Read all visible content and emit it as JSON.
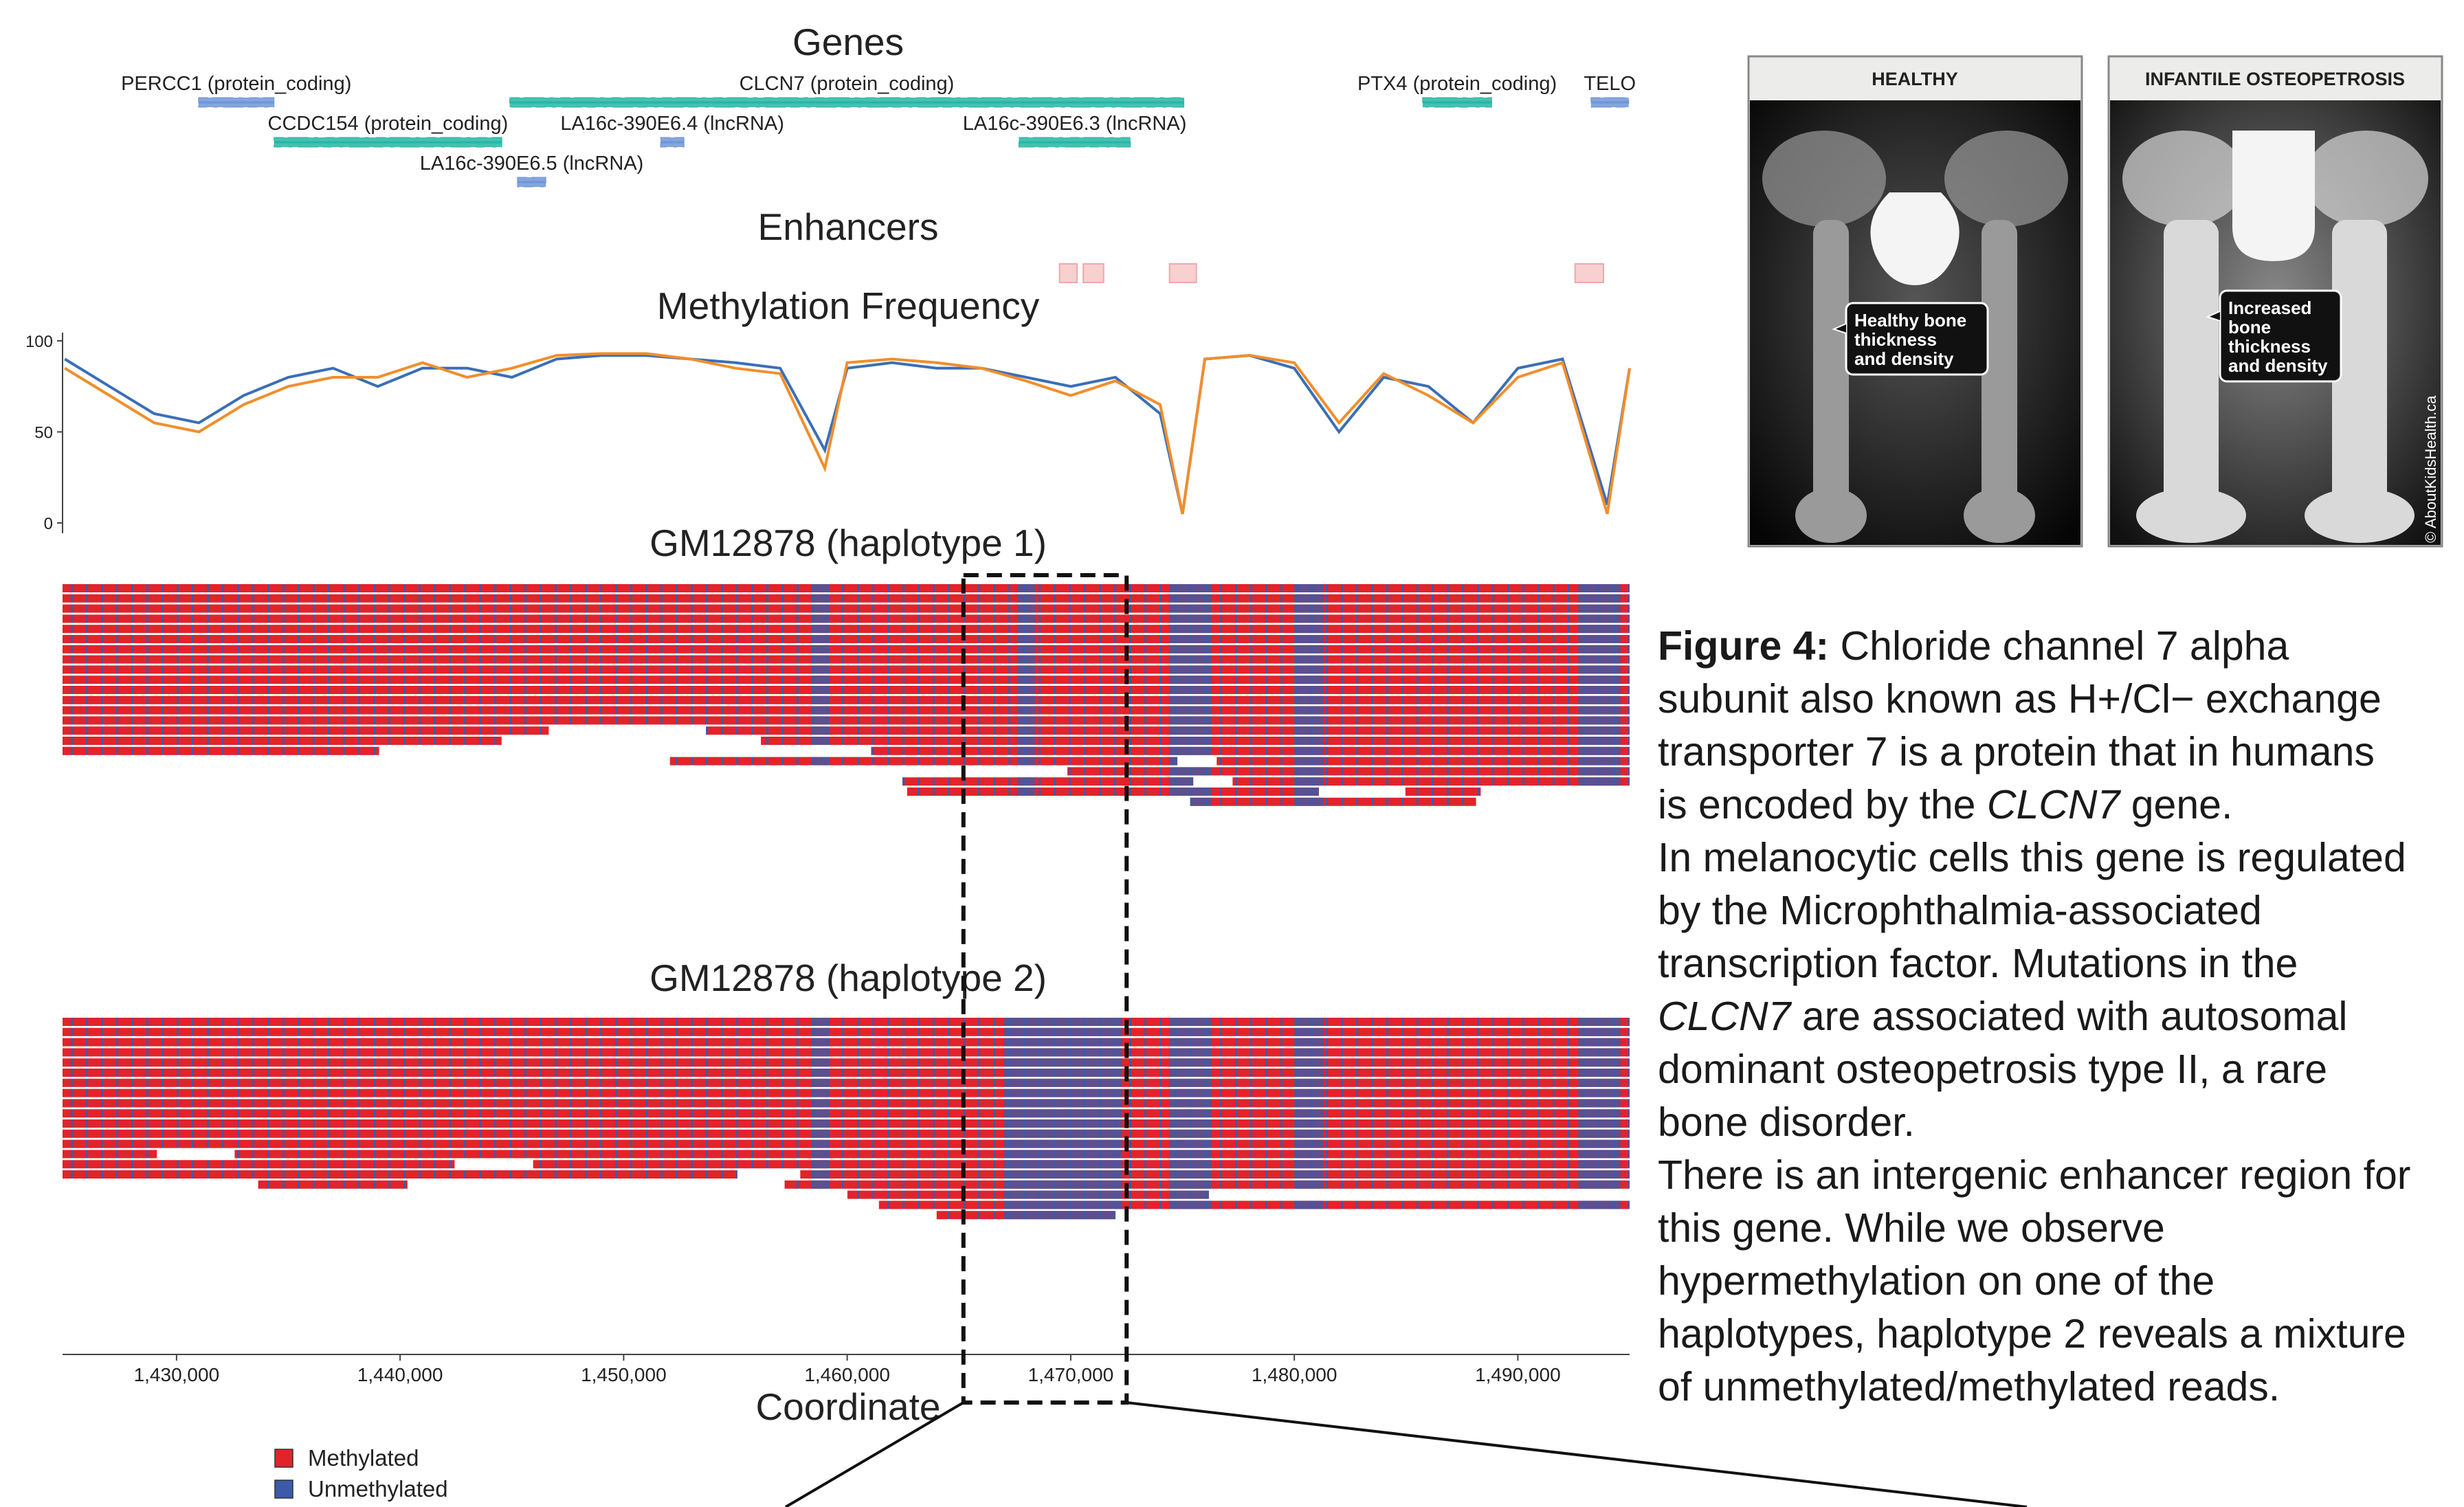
{
  "chart_data": {
    "type": "genome-tracks",
    "xlim": [
      1424900,
      1495000
    ],
    "xticks": [
      {
        "value": 1430000,
        "label": "1,430,000"
      },
      {
        "value": 1440000,
        "label": "1,440,000"
      },
      {
        "value": 1450000,
        "label": "1,450,000"
      },
      {
        "value": 1460000,
        "label": "1,460,000"
      },
      {
        "value": 1470000,
        "label": "1,470,000"
      },
      {
        "value": 1480000,
        "label": "1,480,000"
      },
      {
        "value": 1490000,
        "label": "1,490,000"
      }
    ],
    "xlabel": "Coordinate",
    "highlight": [
      1465200,
      1472500
    ],
    "legend": [
      {
        "name": "Methylated",
        "color": "#e3232a"
      },
      {
        "name": "Unmethylated",
        "color": "#3c5aa8"
      }
    ],
    "tracks": [
      {
        "type": "genes",
        "title": "Genes",
        "genes": [
          {
            "label": "PERCC1 (protein_coding)",
            "start": 1430980,
            "end": 1434360,
            "color": "#6f95d8"
          },
          {
            "label": "CCDC154 (protein_coding)",
            "start": 1434360,
            "end": 1444550,
            "color": "#26b5a5"
          },
          {
            "label": "CLCN7 (protein_coding)",
            "start": 1444900,
            "end": 1475060,
            "color": "#26b5a5"
          },
          {
            "label": "LA16c-390E6.4 (lncRNA)",
            "start": 1451650,
            "end": 1452700,
            "color": "#6f95d8"
          },
          {
            "label": "LA16c-390E6.3 (lncRNA)",
            "start": 1467680,
            "end": 1472670,
            "color": "#26b5a5"
          },
          {
            "label": "LA16c-390E6.5 (lncRNA)",
            "start": 1445250,
            "end": 1446520,
            "color": "#6f95d8"
          },
          {
            "label": "PTX4 (protein_coding)",
            "start": 1485740,
            "end": 1488830,
            "color": "#26b5a5"
          },
          {
            "label": "TELO",
            "start": 1493270,
            "end": 1494960,
            "color": "#6f95d8"
          }
        ]
      },
      {
        "type": "intervals",
        "title": "Enhancers",
        "color": "#f8d0d0",
        "intervals": [
          [
            1469500,
            1470280
          ],
          [
            1470560,
            1471470
          ],
          [
            1474420,
            1475620
          ],
          [
            1492560,
            1493830
          ]
        ]
      },
      {
        "type": "line",
        "title": "Methylation Frequency",
        "ylim": [
          0,
          100
        ],
        "yticks": [
          0,
          50,
          100
        ],
        "x": [
          1425000,
          1427000,
          1429000,
          1431000,
          1433000,
          1435000,
          1437000,
          1439000,
          1441000,
          1443000,
          1445000,
          1447000,
          1449000,
          1451000,
          1453000,
          1455000,
          1457000,
          1459000,
          1460000,
          1462000,
          1464000,
          1466000,
          1468000,
          1470000,
          1472000,
          1474000,
          1475000,
          1476000,
          1478000,
          1480000,
          1482000,
          1484000,
          1486000,
          1488000,
          1490000,
          1492000,
          1494000,
          1495000
        ],
        "series": [
          {
            "color": "#3b6fb6",
            "values": [
              90,
              75,
              60,
              55,
              70,
              80,
              85,
              75,
              85,
              85,
              80,
              90,
              92,
              92,
              90,
              88,
              85,
              40,
              85,
              88,
              85,
              85,
              80,
              75,
              80,
              60,
              5,
              90,
              92,
              85,
              50,
              80,
              75,
              55,
              85,
              90,
              10,
              85
            ]
          },
          {
            "color": "#f28e2b",
            "values": [
              85,
              70,
              55,
              50,
              65,
              75,
              80,
              80,
              88,
              80,
              85,
              92,
              93,
              93,
              90,
              85,
              82,
              30,
              88,
              90,
              88,
              85,
              78,
              70,
              78,
              65,
              5,
              90,
              92,
              88,
              55,
              82,
              70,
              55,
              80,
              88,
              5,
              85
            ]
          }
        ]
      },
      {
        "type": "reads",
        "title": "GM12878 (haplotype 1)",
        "reads": [
          [
            1424900,
            1495000
          ],
          [
            1424900,
            1495000
          ],
          [
            1424900,
            1495000
          ],
          [
            1424900,
            1495000
          ],
          [
            1424900,
            1495000
          ],
          [
            1424900,
            1495000
          ],
          [
            1424900,
            1495000
          ],
          [
            1424900,
            1495000
          ],
          [
            1424900,
            1495000
          ],
          [
            1424900,
            1495000
          ],
          [
            1424900,
            1495000
          ],
          [
            1424900,
            1495000
          ],
          [
            1424900,
            1495000
          ],
          [
            1424900,
            1495000
          ],
          [
            1424900,
            1446650
          ],
          [
            1453680,
            1495000
          ],
          [
            1424900,
            1444540
          ],
          [
            1456140,
            1495000
          ],
          [
            1424900,
            1439060
          ],
          [
            1461070,
            1495000
          ],
          [
            1452070,
            1474770
          ],
          [
            1469850,
            1495000
          ],
          [
            1462470,
            1475480
          ],
          [
            1476530,
            1495000
          ],
          [
            1477240,
            1495000
          ],
          [
            1462680,
            1481100
          ],
          [
            1475340,
            1488130
          ],
          [
            1484970,
            1488340
          ]
        ],
        "unmethylated": [
          [
            1458400,
            1459200
          ],
          [
            1467600,
            1468400
          ],
          [
            1474400,
            1476300
          ],
          [
            1480000,
            1481300
          ],
          [
            1492700,
            1494600
          ]
        ]
      },
      {
        "type": "reads",
        "title": "GM12878 (haplotype 2)",
        "reads": [
          [
            1424900,
            1495000
          ],
          [
            1424900,
            1495000
          ],
          [
            1424900,
            1495000
          ],
          [
            1424900,
            1495000
          ],
          [
            1424900,
            1495000
          ],
          [
            1424900,
            1495000
          ],
          [
            1424900,
            1495000
          ],
          [
            1424900,
            1495000
          ],
          [
            1424900,
            1495000
          ],
          [
            1424900,
            1495000
          ],
          [
            1424900,
            1495000
          ],
          [
            1424900,
            1495000
          ],
          [
            1424900,
            1495000
          ],
          [
            1424900,
            1429120
          ],
          [
            1432600,
            1495000
          ],
          [
            1424900,
            1442440
          ],
          [
            1445950,
            1495000
          ],
          [
            1424900,
            1455090
          ],
          [
            1457900,
            1495000
          ],
          [
            1433650,
            1440330
          ],
          [
            1457200,
            1495000
          ],
          [
            1460010,
            1476180
          ],
          [
            1461420,
            1495000
          ],
          [
            1464000,
            1472000
          ]
        ],
        "unmethylated": [
          [
            1458400,
            1459200
          ],
          [
            1467000,
            1472300
          ],
          [
            1474400,
            1476300
          ],
          [
            1480000,
            1481300
          ],
          [
            1492700,
            1494600
          ]
        ]
      }
    ]
  },
  "images": [
    {
      "header": "HEALTHY",
      "callout": [
        "Healthy bone",
        "thickness",
        "and density"
      ]
    },
    {
      "header": "INFANTILE OSTEOPETROSIS",
      "callout": [
        "Increased",
        "bone",
        "thickness",
        "and density"
      ]
    }
  ],
  "credit": "© AboutKidsHealth.ca",
  "caption": [
    [
      {
        "text": "Figure 4:",
        "bold": true
      },
      {
        "text": " Chloride channel 7 alpha"
      }
    ],
    [
      {
        "text": "subunit also known as H+/Cl− exchange"
      }
    ],
    [
      {
        "text": "transporter 7 is a protein that in humans"
      }
    ],
    [
      {
        "text": "is encoded by the "
      },
      {
        "text": "CLCN7",
        "italic": true
      },
      {
        "text": " gene."
      }
    ],
    [
      {
        "text": "In melanocytic cells this gene is regulated"
      }
    ],
    [
      {
        "text": "by the Microphthalmia-associated"
      }
    ],
    [
      {
        "text": "transcription factor. Mutations in the"
      }
    ],
    [
      {
        "text": "CLCN7",
        "italic": true
      },
      {
        "text": " are associated with autosomal"
      }
    ],
    [
      {
        "text": "dominant osteopetrosis type II, a rare"
      }
    ],
    [
      {
        "text": "bone disorder."
      }
    ],
    [
      {
        "text": "There is an intergenic enhancer region for"
      }
    ],
    [
      {
        "text": "this gene. While we observe"
      }
    ],
    [
      {
        "text": "hypermethylation on one of the"
      }
    ],
    [
      {
        "text": "haplotypes, haplotype 2 reveals a mixture"
      }
    ],
    [
      {
        "text": "of unmethylated/methylated reads."
      }
    ]
  ]
}
